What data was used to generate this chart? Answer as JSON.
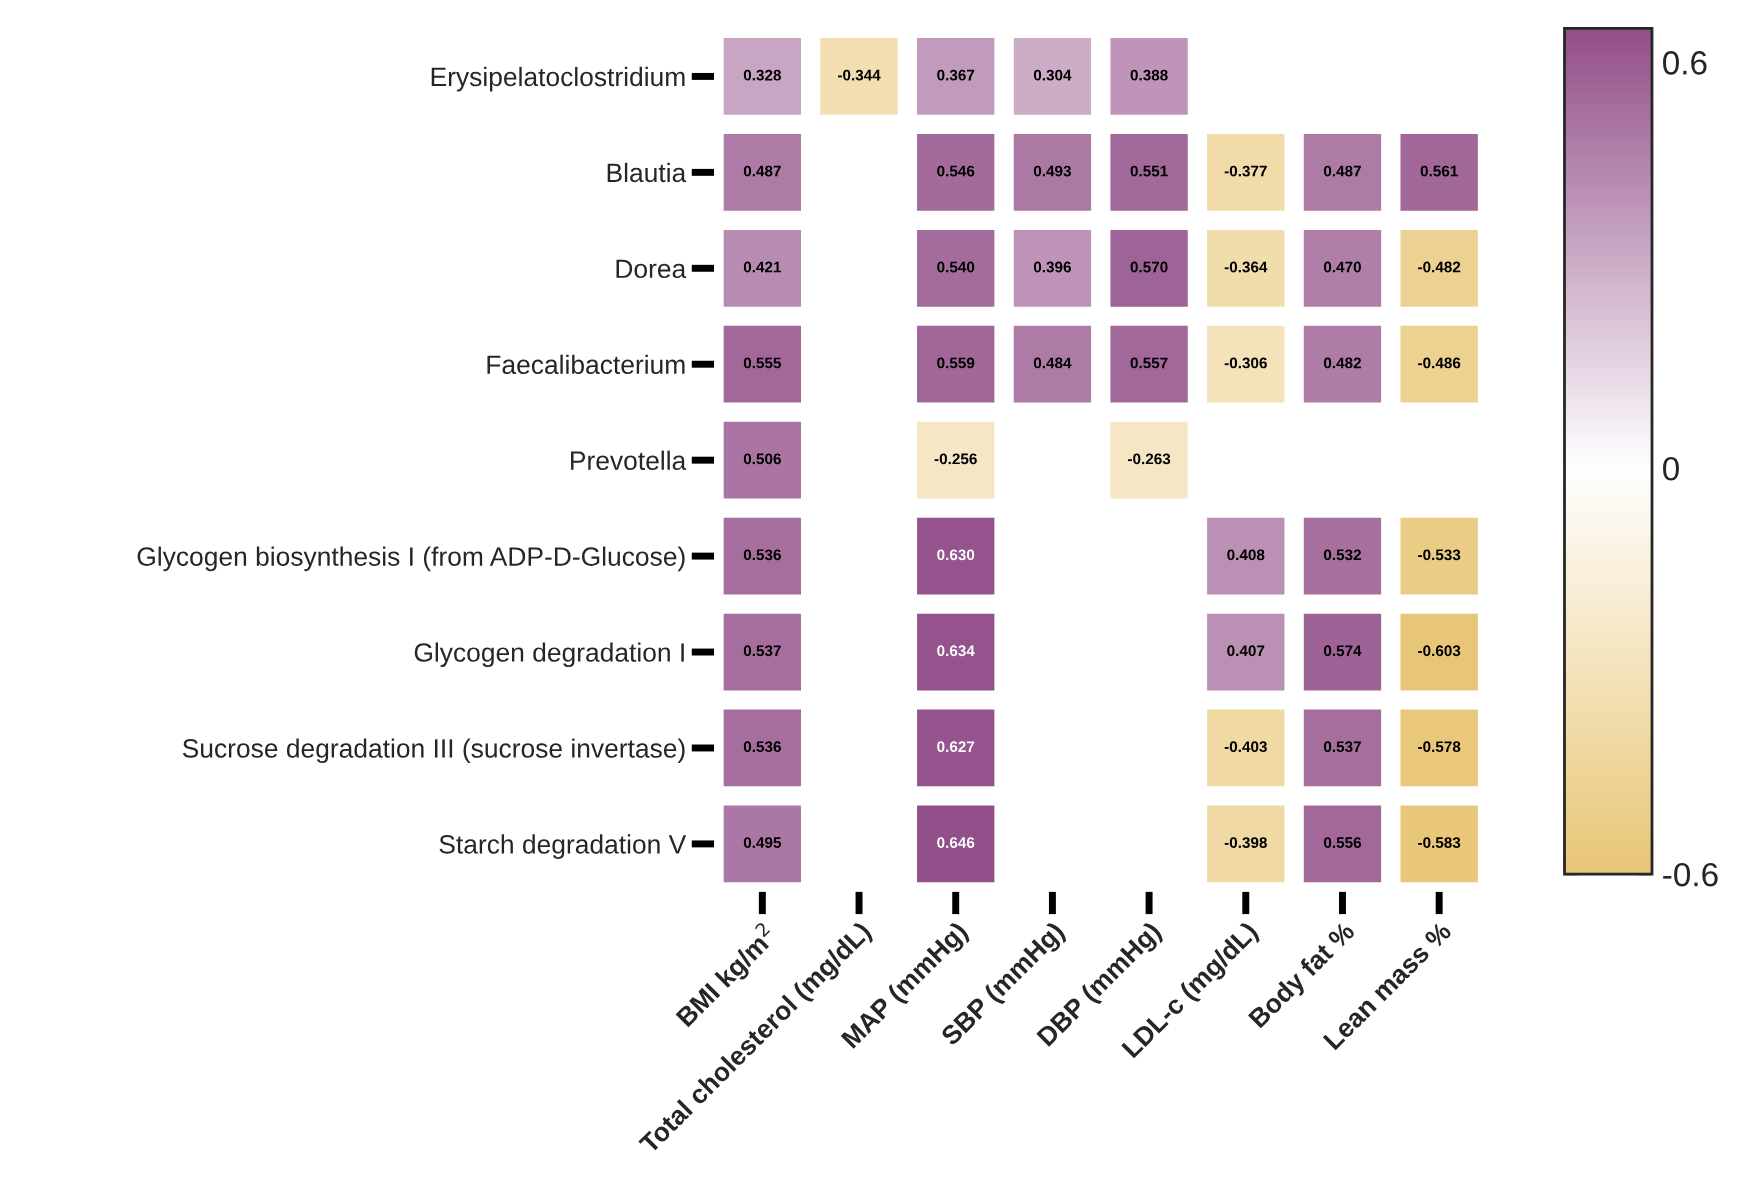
{
  "chart_data": {
    "type": "heatmap",
    "categories": [
      "BMI kg/m$^{2}$",
      "Total cholesterol (mg/dL)",
      "MAP (mmHg)",
      "SBP (mmHg)",
      "DBP (mmHg)",
      "LDL-c (mg/dL)",
      "Body fat %",
      "Lean mass %"
    ],
    "y_categories": [
      "Erysipelatoclostridium",
      "Blautia",
      "Dorea",
      "Faecalibacterium",
      "Prevotella",
      "Glycogen biosynthesis I (from ADP-D-Glucose)",
      "Glycogen degradation I",
      "Sucrose degradation III (sucrose invertase)",
      "Starch degradation V"
    ],
    "cells": [
      [
        0.328,
        -0.344,
        0.367,
        0.304,
        0.388,
        null,
        null,
        null
      ],
      [
        0.487,
        null,
        0.546,
        0.493,
        0.551,
        -0.377,
        0.487,
        0.561
      ],
      [
        0.421,
        null,
        0.54,
        0.396,
        0.57,
        -0.364,
        0.47,
        -0.482
      ],
      [
        0.555,
        null,
        0.559,
        0.484,
        0.557,
        -0.306,
        0.482,
        -0.486
      ],
      [
        0.506,
        null,
        -0.256,
        null,
        -0.263,
        null,
        null,
        null
      ],
      [
        0.536,
        null,
        0.63,
        null,
        null,
        0.408,
        0.532,
        -0.533
      ],
      [
        0.537,
        null,
        0.634,
        null,
        null,
        0.407,
        0.574,
        -0.603
      ],
      [
        0.536,
        null,
        0.627,
        null,
        null,
        -0.403,
        0.537,
        -0.578
      ],
      [
        0.495,
        null,
        0.646,
        null,
        null,
        -0.398,
        0.556,
        -0.583
      ]
    ],
    "cell_labels": [
      [
        "0.328",
        "-0.344",
        "0.367",
        "0.304",
        "0.388",
        null,
        null,
        null
      ],
      [
        "0.487",
        null,
        "0.546",
        "0.493",
        "0.551",
        "-0.377",
        "0.487",
        "0.561"
      ],
      [
        "0.421",
        null,
        "0.540",
        "0.396",
        "0.570",
        "-0.364",
        "0.470",
        "-0.482"
      ],
      [
        "0.555",
        null,
        "0.559",
        "0.484",
        "0.557",
        "-0.306",
        "0.482",
        "-0.486"
      ],
      [
        "0.506",
        null,
        "-0.256",
        null,
        "-0.263",
        null,
        null,
        null
      ],
      [
        "0.536",
        null,
        "0.630",
        null,
        null,
        "0.408",
        "0.532",
        "-0.533"
      ],
      [
        "0.537",
        null,
        "0.634",
        null,
        null,
        "0.407",
        "0.574",
        "-0.603"
      ],
      [
        "0.536",
        null,
        "0.627",
        null,
        null,
        "-0.403",
        "0.537",
        "-0.578"
      ],
      [
        "0.495",
        null,
        "0.646",
        null,
        null,
        "-0.398",
        "0.556",
        "-0.583"
      ]
    ],
    "clim": [
      -0.6,
      0.65
    ],
    "cticks": [
      -0.6,
      0,
      0.6
    ]
  }
}
